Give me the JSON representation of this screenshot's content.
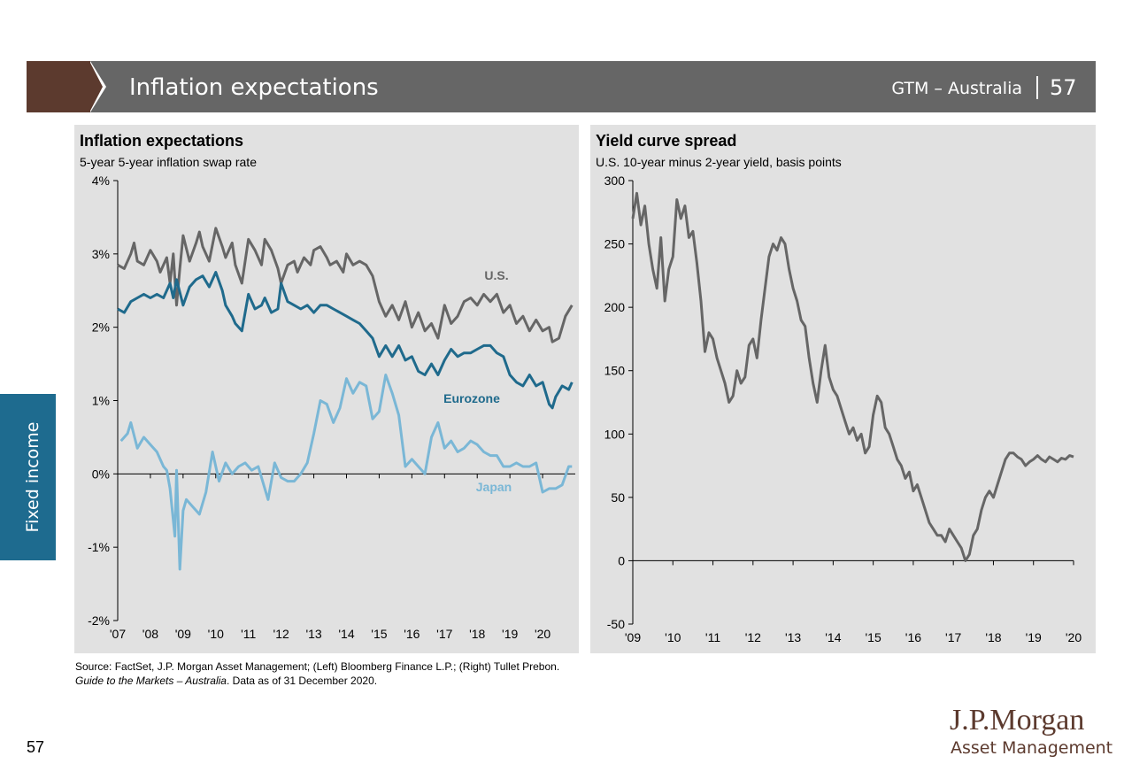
{
  "header": {
    "title": "Inflation expectations",
    "source": "GTM – Australia",
    "page": "57"
  },
  "side_tab": {
    "label": "Fixed income"
  },
  "footer": {
    "source_line": "Source: FactSet, J.P. Morgan Asset Management; (Left) Bloomberg Finance L.P.; (Right) Tullet Prebon.",
    "note_italic": "Guide to the Markets – Australia",
    "note_rest": ". Data as of 31 December 2020.",
    "page_number": "57"
  },
  "logo": {
    "line1": "J.P.Morgan",
    "line2": "Asset Management"
  },
  "colors": {
    "us": "#666666",
    "eurozone": "#1f6a8c",
    "japan": "#7ab7d6",
    "yield": "#666666",
    "brand": "#5c3a2e"
  },
  "chart_data": [
    {
      "type": "line",
      "title": "Inflation expectations",
      "subtitle": "5-year 5-year inflation swap rate",
      "ylim": [
        -2,
        4
      ],
      "yticks": [
        -2,
        -1,
        0,
        1,
        2,
        3,
        4
      ],
      "ytick_labels": [
        "-2%",
        "-1%",
        "0%",
        "1%",
        "2%",
        "3%",
        "4%"
      ],
      "xlim": [
        2007,
        2021
      ],
      "xticks": [
        2007,
        2008,
        2009,
        2010,
        2011,
        2012,
        2013,
        2014,
        2015,
        2016,
        2017,
        2018,
        2019,
        2020
      ],
      "xtick_labels": [
        "'07",
        "'08",
        "'09",
        "'10",
        "'11",
        "'12",
        "'13",
        "'14",
        "'15",
        "'16",
        "'17",
        "'18",
        "'19",
        "'20"
      ],
      "series": [
        {
          "name": "U.S.",
          "color": "#666666",
          "x": [
            2007.0,
            2007.2,
            2007.4,
            2007.5,
            2007.6,
            2007.8,
            2008.0,
            2008.2,
            2008.3,
            2008.5,
            2008.6,
            2008.7,
            2008.8,
            2008.9,
            2009.0,
            2009.2,
            2009.4,
            2009.5,
            2009.6,
            2009.8,
            2010.0,
            2010.2,
            2010.3,
            2010.5,
            2010.6,
            2010.8,
            2011.0,
            2011.2,
            2011.4,
            2011.5,
            2011.7,
            2011.9,
            2012.0,
            2012.2,
            2012.4,
            2012.5,
            2012.7,
            2012.9,
            2013.0,
            2013.2,
            2013.4,
            2013.5,
            2013.7,
            2013.9,
            2014.0,
            2014.2,
            2014.4,
            2014.6,
            2014.8,
            2015.0,
            2015.2,
            2015.4,
            2015.6,
            2015.8,
            2016.0,
            2016.2,
            2016.4,
            2016.6,
            2016.8,
            2017.0,
            2017.2,
            2017.4,
            2017.6,
            2017.8,
            2018.0,
            2018.2,
            2018.4,
            2018.6,
            2018.8,
            2019.0,
            2019.2,
            2019.4,
            2019.6,
            2019.8,
            2020.0,
            2020.2,
            2020.3,
            2020.5,
            2020.7,
            2020.9
          ],
          "y": [
            2.85,
            2.8,
            3.0,
            3.15,
            2.9,
            2.85,
            3.05,
            2.9,
            2.75,
            2.95,
            2.6,
            3.0,
            2.3,
            2.8,
            3.25,
            2.9,
            3.15,
            3.3,
            3.1,
            2.9,
            3.35,
            3.1,
            2.95,
            3.15,
            2.85,
            2.6,
            3.2,
            3.05,
            2.85,
            3.2,
            3.05,
            2.8,
            2.6,
            2.85,
            2.9,
            2.75,
            2.95,
            2.85,
            3.05,
            3.1,
            2.95,
            2.85,
            2.9,
            2.75,
            3.0,
            2.85,
            2.9,
            2.85,
            2.7,
            2.35,
            2.15,
            2.3,
            2.1,
            2.35,
            2.0,
            2.2,
            1.95,
            2.05,
            1.85,
            2.3,
            2.05,
            2.15,
            2.35,
            2.4,
            2.3,
            2.45,
            2.35,
            2.45,
            2.2,
            2.3,
            2.05,
            2.15,
            1.95,
            2.1,
            1.95,
            2.0,
            1.8,
            1.85,
            2.15,
            2.3
          ]
        },
        {
          "name": "Eurozone",
          "color": "#1f6a8c",
          "x": [
            2007.0,
            2007.2,
            2007.4,
            2007.6,
            2007.8,
            2008.0,
            2008.2,
            2008.4,
            2008.6,
            2008.7,
            2008.8,
            2009.0,
            2009.2,
            2009.4,
            2009.6,
            2009.8,
            2010.0,
            2010.2,
            2010.3,
            2010.5,
            2010.6,
            2010.8,
            2011.0,
            2011.2,
            2011.4,
            2011.5,
            2011.7,
            2011.9,
            2012.0,
            2012.2,
            2012.4,
            2012.6,
            2012.8,
            2013.0,
            2013.2,
            2013.4,
            2013.6,
            2013.8,
            2014.0,
            2014.2,
            2014.4,
            2014.6,
            2014.8,
            2015.0,
            2015.2,
            2015.4,
            2015.6,
            2015.8,
            2016.0,
            2016.2,
            2016.4,
            2016.6,
            2016.8,
            2017.0,
            2017.2,
            2017.4,
            2017.6,
            2017.8,
            2018.0,
            2018.2,
            2018.4,
            2018.6,
            2018.8,
            2019.0,
            2019.2,
            2019.4,
            2019.6,
            2019.8,
            2020.0,
            2020.2,
            2020.3,
            2020.4,
            2020.6,
            2020.8,
            2020.9
          ],
          "y": [
            2.25,
            2.2,
            2.35,
            2.4,
            2.45,
            2.4,
            2.45,
            2.4,
            2.6,
            2.4,
            2.65,
            2.3,
            2.55,
            2.65,
            2.7,
            2.55,
            2.75,
            2.5,
            2.3,
            2.15,
            2.05,
            1.95,
            2.45,
            2.25,
            2.3,
            2.4,
            2.2,
            2.25,
            2.6,
            2.35,
            2.3,
            2.25,
            2.3,
            2.2,
            2.3,
            2.3,
            2.25,
            2.2,
            2.15,
            2.1,
            2.05,
            1.95,
            1.85,
            1.6,
            1.75,
            1.6,
            1.75,
            1.55,
            1.6,
            1.4,
            1.35,
            1.5,
            1.35,
            1.55,
            1.7,
            1.6,
            1.65,
            1.65,
            1.7,
            1.75,
            1.75,
            1.65,
            1.6,
            1.35,
            1.25,
            1.2,
            1.35,
            1.2,
            1.25,
            0.95,
            0.9,
            1.05,
            1.2,
            1.15,
            1.25
          ]
        },
        {
          "name": "Japan",
          "color": "#7ab7d6",
          "x": [
            2007.1,
            2007.3,
            2007.4,
            2007.6,
            2007.8,
            2008.0,
            2008.2,
            2008.4,
            2008.5,
            2008.6,
            2008.75,
            2008.8,
            2008.9,
            2009.0,
            2009.1,
            2009.3,
            2009.5,
            2009.7,
            2009.9,
            2010.1,
            2010.3,
            2010.5,
            2010.7,
            2010.9,
            2011.1,
            2011.3,
            2011.5,
            2011.6,
            2011.8,
            2012.0,
            2012.2,
            2012.4,
            2012.6,
            2012.8,
            2013.0,
            2013.2,
            2013.4,
            2013.6,
            2013.8,
            2014.0,
            2014.2,
            2014.4,
            2014.6,
            2014.8,
            2015.0,
            2015.2,
            2015.4,
            2015.6,
            2015.8,
            2016.0,
            2016.2,
            2016.4,
            2016.6,
            2016.8,
            2017.0,
            2017.2,
            2017.4,
            2017.6,
            2017.8,
            2018.0,
            2018.2,
            2018.4,
            2018.6,
            2018.8,
            2019.0,
            2019.2,
            2019.4,
            2019.6,
            2019.8,
            2020.0,
            2020.2,
            2020.4,
            2020.6,
            2020.8,
            2020.9
          ],
          "y": [
            0.45,
            0.55,
            0.7,
            0.35,
            0.5,
            0.4,
            0.3,
            0.1,
            0.05,
            -0.2,
            -0.85,
            0.05,
            -1.3,
            -0.5,
            -0.35,
            -0.45,
            -0.55,
            -0.25,
            0.3,
            -0.1,
            0.15,
            0.0,
            0.1,
            0.15,
            0.05,
            0.1,
            -0.2,
            -0.35,
            0.15,
            -0.05,
            -0.1,
            -0.1,
            0.0,
            0.15,
            0.55,
            1.0,
            0.95,
            0.7,
            0.9,
            1.3,
            1.1,
            1.25,
            1.2,
            0.75,
            0.85,
            1.35,
            1.1,
            0.8,
            0.1,
            0.2,
            0.1,
            0.0,
            0.5,
            0.7,
            0.35,
            0.45,
            0.3,
            0.35,
            0.45,
            0.4,
            0.3,
            0.25,
            0.25,
            0.1,
            0.1,
            0.15,
            0.1,
            0.1,
            0.15,
            -0.25,
            -0.2,
            -0.2,
            -0.15,
            0.1,
            0.1
          ]
        }
      ]
    },
    {
      "type": "line",
      "title": "Yield curve spread",
      "subtitle": "U.S. 10-year minus 2-year yield, basis points",
      "ylim": [
        -50,
        300
      ],
      "yticks": [
        -50,
        0,
        50,
        100,
        150,
        200,
        250,
        300
      ],
      "ytick_labels": [
        "-50",
        "0",
        "50",
        "100",
        "150",
        "200",
        "250",
        "300"
      ],
      "xlim": [
        2009,
        2020
      ],
      "xticks": [
        2009,
        2010,
        2011,
        2012,
        2013,
        2014,
        2015,
        2016,
        2017,
        2018,
        2019,
        2020
      ],
      "xtick_labels": [
        "'09",
        "'10",
        "'11",
        "'12",
        "'13",
        "'14",
        "'15",
        "'16",
        "'17",
        "'18",
        "'19",
        "'20"
      ],
      "series": [
        {
          "color": "#666666",
          "x": [
            2009.0,
            2009.1,
            2009.2,
            2009.3,
            2009.4,
            2009.5,
            2009.6,
            2009.7,
            2009.8,
            2009.9,
            2010.0,
            2010.1,
            2010.2,
            2010.3,
            2010.4,
            2010.5,
            2010.6,
            2010.7,
            2010.8,
            2010.9,
            2011.0,
            2011.1,
            2011.2,
            2011.3,
            2011.4,
            2011.5,
            2011.6,
            2011.7,
            2011.8,
            2011.9,
            2012.0,
            2012.1,
            2012.2,
            2012.3,
            2012.4,
            2012.5,
            2012.6,
            2012.7,
            2012.8,
            2012.9,
            2013.0,
            2013.1,
            2013.2,
            2013.3,
            2013.4,
            2013.5,
            2013.6,
            2013.7,
            2013.8,
            2013.9,
            2014.0,
            2014.1,
            2014.2,
            2014.3,
            2014.4,
            2014.5,
            2014.6,
            2014.7,
            2014.8,
            2014.9,
            2015.0,
            2015.1,
            2015.2,
            2015.3,
            2015.4,
            2015.5,
            2015.6,
            2015.7,
            2015.8,
            2015.9,
            2016.0,
            2016.1,
            2016.2,
            2016.3,
            2016.4,
            2016.5,
            2016.6,
            2016.7,
            2016.8,
            2016.9,
            2017.0,
            2017.1,
            2017.2,
            2017.3,
            2017.4,
            2017.5,
            2017.6,
            2017.7,
            2017.8,
            2017.9,
            2018.0,
            2018.1,
            2018.2,
            2018.3,
            2018.4,
            2018.5,
            2018.6,
            2018.7,
            2018.8,
            2018.9,
            2019.0,
            2019.1,
            2019.2,
            2019.3,
            2019.4,
            2019.5,
            2019.6,
            2019.7,
            2019.8,
            2019.9,
            2020.0
          ],
          "y": [
            270,
            290,
            265,
            280,
            250,
            230,
            215,
            255,
            205,
            230,
            240,
            285,
            270,
            280,
            255,
            260,
            235,
            205,
            165,
            180,
            175,
            160,
            150,
            140,
            125,
            130,
            150,
            140,
            145,
            170,
            175,
            160,
            190,
            215,
            240,
            250,
            245,
            255,
            250,
            230,
            215,
            205,
            190,
            185,
            160,
            140,
            125,
            150,
            170,
            145,
            135,
            130,
            120,
            110,
            100,
            105,
            95,
            100,
            85,
            90,
            115,
            130,
            125,
            105,
            100,
            90,
            80,
            75,
            65,
            70,
            55,
            60,
            50,
            40,
            30,
            25,
            20,
            20,
            15,
            25,
            20,
            15,
            10,
            0,
            5,
            20,
            25,
            40,
            50,
            55,
            50,
            60,
            70,
            80,
            85,
            85,
            82,
            80,
            75,
            78,
            80,
            83,
            80,
            78,
            82,
            80,
            78,
            81,
            80,
            83,
            82
          ]
        }
      ]
    }
  ]
}
